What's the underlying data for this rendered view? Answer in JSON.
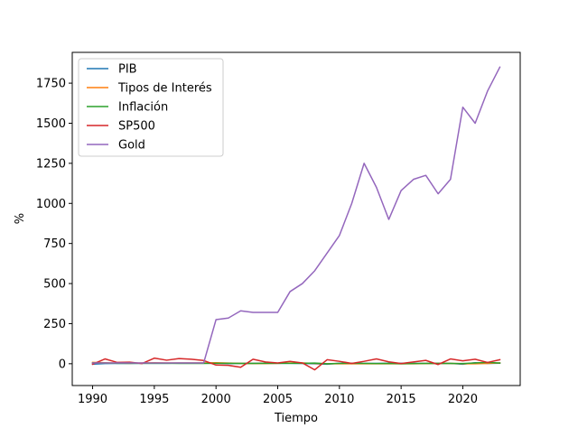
{
  "chart_data": {
    "type": "line",
    "title": "",
    "xlabel": "Tiempo",
    "ylabel": "%",
    "xlim": [
      1988.35,
      2024.65
    ],
    "ylim": [
      -136,
      1942
    ],
    "x_ticks": [
      1990,
      1995,
      2000,
      2005,
      2010,
      2015,
      2020
    ],
    "y_ticks": [
      0,
      250,
      500,
      750,
      1000,
      1250,
      1500,
      1750
    ],
    "grid": false,
    "legend_position": "top-left",
    "x": [
      1990,
      1991,
      1992,
      1993,
      1994,
      1995,
      1996,
      1997,
      1998,
      1999,
      2000,
      2001,
      2002,
      2003,
      2004,
      2005,
      2006,
      2007,
      2008,
      2009,
      2010,
      2011,
      2012,
      2013,
      2014,
      2015,
      2016,
      2017,
      2018,
      2019,
      2020,
      2021,
      2022,
      2023
    ],
    "series": [
      {
        "name": "PIB",
        "color": "#1f77b4",
        "values": [
          -3,
          1,
          2,
          2,
          3,
          3,
          3,
          4,
          4,
          4,
          4,
          1,
          2,
          3,
          3,
          3,
          3,
          2,
          0,
          -3,
          3,
          2,
          2,
          2,
          3,
          3,
          2,
          2,
          3,
          2,
          -3,
          6,
          2,
          3
        ]
      },
      {
        "name": "Tipos de Interés",
        "color": "#ff7f0e",
        "values": [
          8,
          6,
          4,
          3,
          5,
          6,
          5,
          5,
          5,
          5,
          6,
          4,
          2,
          1,
          1,
          3,
          5,
          5,
          2,
          0,
          0,
          0,
          0,
          0,
          0,
          0,
          0,
          1,
          2,
          2,
          0,
          0,
          2,
          5
        ]
      },
      {
        "name": "Inflación",
        "color": "#2ca02c",
        "values": [
          5,
          4,
          3,
          3,
          3,
          3,
          3,
          2,
          2,
          2,
          3,
          3,
          2,
          2,
          3,
          3,
          3,
          3,
          4,
          0,
          2,
          3,
          2,
          1,
          2,
          0,
          1,
          2,
          2,
          2,
          1,
          5,
          8,
          4
        ]
      },
      {
        "name": "SP500",
        "color": "#d62728",
        "values": [
          -3,
          30,
          8,
          10,
          1,
          35,
          22,
          32,
          28,
          20,
          -8,
          -10,
          -22,
          28,
          11,
          5,
          15,
          5,
          -38,
          25,
          15,
          2,
          15,
          30,
          12,
          1,
          11,
          21,
          -5,
          30,
          18,
          28,
          8,
          25
        ]
      },
      {
        "name": "Gold",
        "color": "#9467bd",
        "values": [
          5,
          5,
          5,
          5,
          5,
          5,
          5,
          5,
          5,
          5,
          275,
          285,
          330,
          320,
          320,
          320,
          450,
          500,
          580,
          690,
          800,
          1000,
          1250,
          1100,
          900,
          1080,
          1150,
          1175,
          1060,
          1150,
          1600,
          1500,
          1700,
          1850
        ]
      }
    ]
  }
}
